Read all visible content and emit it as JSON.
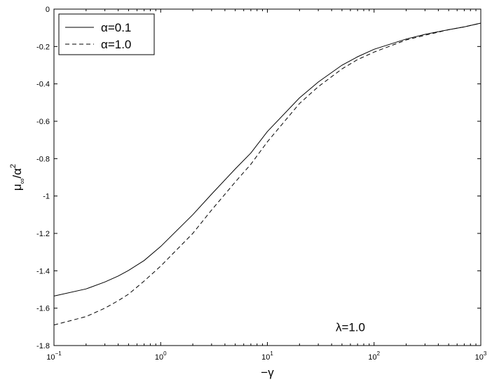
{
  "chart_data": {
    "type": "line",
    "title": "",
    "xlabel": "−γ",
    "ylabel_parts": {
      "main": "μ",
      "sub": "∞",
      "rest": "/α",
      "sup": "2"
    },
    "xscale": "log",
    "xlim": [
      0.1,
      1000
    ],
    "ylim": [
      -1.8,
      0
    ],
    "grid": false,
    "legend_position": "top-left",
    "x_ticks": [
      {
        "value": 0.1,
        "base": "10",
        "exp": "−1"
      },
      {
        "value": 1,
        "base": "10",
        "exp": "0"
      },
      {
        "value": 10,
        "base": "10",
        "exp": "1"
      },
      {
        "value": 100,
        "base": "10",
        "exp": "2"
      },
      {
        "value": 1000,
        "base": "10",
        "exp": "3"
      }
    ],
    "y_ticks": [
      {
        "value": 0,
        "label": "0"
      },
      {
        "value": -0.2,
        "label": "-0.2"
      },
      {
        "value": -0.4,
        "label": "-0.4"
      },
      {
        "value": -0.6,
        "label": "-0.6"
      },
      {
        "value": -0.8,
        "label": "-0.8"
      },
      {
        "value": -1,
        "label": "-1"
      },
      {
        "value": -1.2,
        "label": "-1.2"
      },
      {
        "value": -1.4,
        "label": "-1.4"
      },
      {
        "value": -1.6,
        "label": "-1.6"
      },
      {
        "value": -1.8,
        "label": "-1.8"
      }
    ],
    "series": [
      {
        "name": "α=0.1",
        "style": "solid",
        "color": "#000000",
        "x": [
          0.1,
          0.2,
          0.3,
          0.4,
          0.5,
          0.7,
          1,
          2,
          3,
          5,
          7,
          10,
          20,
          30,
          50,
          70,
          100,
          200,
          300,
          500,
          700,
          1000
        ],
        "y": [
          -1.535,
          -1.497,
          -1.46,
          -1.428,
          -1.398,
          -1.345,
          -1.27,
          -1.1,
          -0.99,
          -0.855,
          -0.77,
          -0.655,
          -0.475,
          -0.39,
          -0.3,
          -0.255,
          -0.215,
          -0.16,
          -0.135,
          -0.11,
          -0.095,
          -0.075
        ]
      },
      {
        "name": "α=1.0",
        "style": "dashed",
        "color": "#000000",
        "x": [
          0.1,
          0.2,
          0.3,
          0.4,
          0.5,
          0.7,
          1,
          2,
          3,
          5,
          7,
          10,
          20,
          30,
          50,
          70,
          100,
          200,
          300,
          500,
          700,
          1000
        ],
        "y": [
          -1.69,
          -1.645,
          -1.6,
          -1.56,
          -1.525,
          -1.455,
          -1.375,
          -1.2,
          -1.075,
          -0.925,
          -0.83,
          -0.71,
          -0.505,
          -0.415,
          -0.32,
          -0.27,
          -0.23,
          -0.165,
          -0.14,
          -0.11,
          -0.095,
          -0.075
        ]
      }
    ],
    "annotations": [
      {
        "text": "λ=1.0",
        "x": 60,
        "y": -1.7
      }
    ]
  }
}
